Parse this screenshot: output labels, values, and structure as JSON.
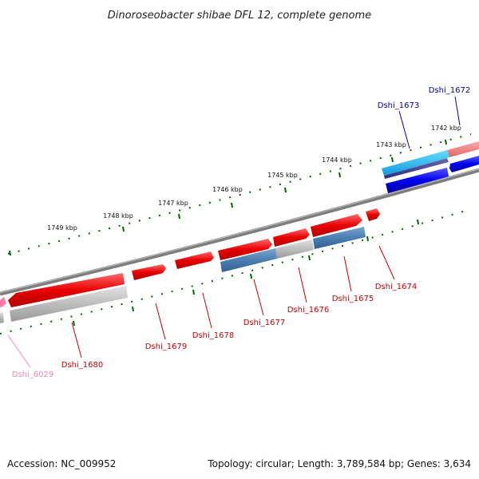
{
  "title": "Dinoroseobacter shibae DFL 12, complete genome",
  "footer": {
    "accession": "Accession: NC_009952",
    "summary": "Topology: circular; Length: 3,789,584 bp; Genes: 3,634"
  },
  "colors": {
    "forward_gene": "#e00000",
    "forward_label": "#cc0000",
    "reverse_gene": "#0000e6",
    "reverse_label": "#0000aa",
    "pseudo_label": "#ee88bb",
    "highlight_cyan": "#22bbee",
    "highlight_pink": "#ee7777",
    "tick": "#006600",
    "backbone": "#7a7a7a"
  },
  "kbp_ticks": [
    "1742 kbp",
    "1743 kbp",
    "1744 kbp",
    "1745 kbp",
    "1746 kbp",
    "1747 kbp",
    "1748 kbp",
    "1749 kbp"
  ],
  "genes": [
    {
      "id": "Dshi_1672",
      "strand": "reverse",
      "color": "#0000aa"
    },
    {
      "id": "Dshi_1673",
      "strand": "reverse",
      "color": "#0000aa"
    },
    {
      "id": "Dshi_1674",
      "strand": "forward",
      "color": "#cc0000"
    },
    {
      "id": "Dshi_1675",
      "strand": "forward",
      "color": "#cc0000"
    },
    {
      "id": "Dshi_1676",
      "strand": "forward",
      "color": "#cc0000"
    },
    {
      "id": "Dshi_1677",
      "strand": "forward",
      "color": "#cc0000"
    },
    {
      "id": "Dshi_1678",
      "strand": "forward",
      "color": "#cc0000"
    },
    {
      "id": "Dshi_1679",
      "strand": "forward",
      "color": "#cc0000"
    },
    {
      "id": "Dshi_1680",
      "strand": "forward",
      "color": "#cc0000"
    },
    {
      "id": "Dshi_6029",
      "strand": "forward",
      "color": "#ee88bb"
    }
  ]
}
